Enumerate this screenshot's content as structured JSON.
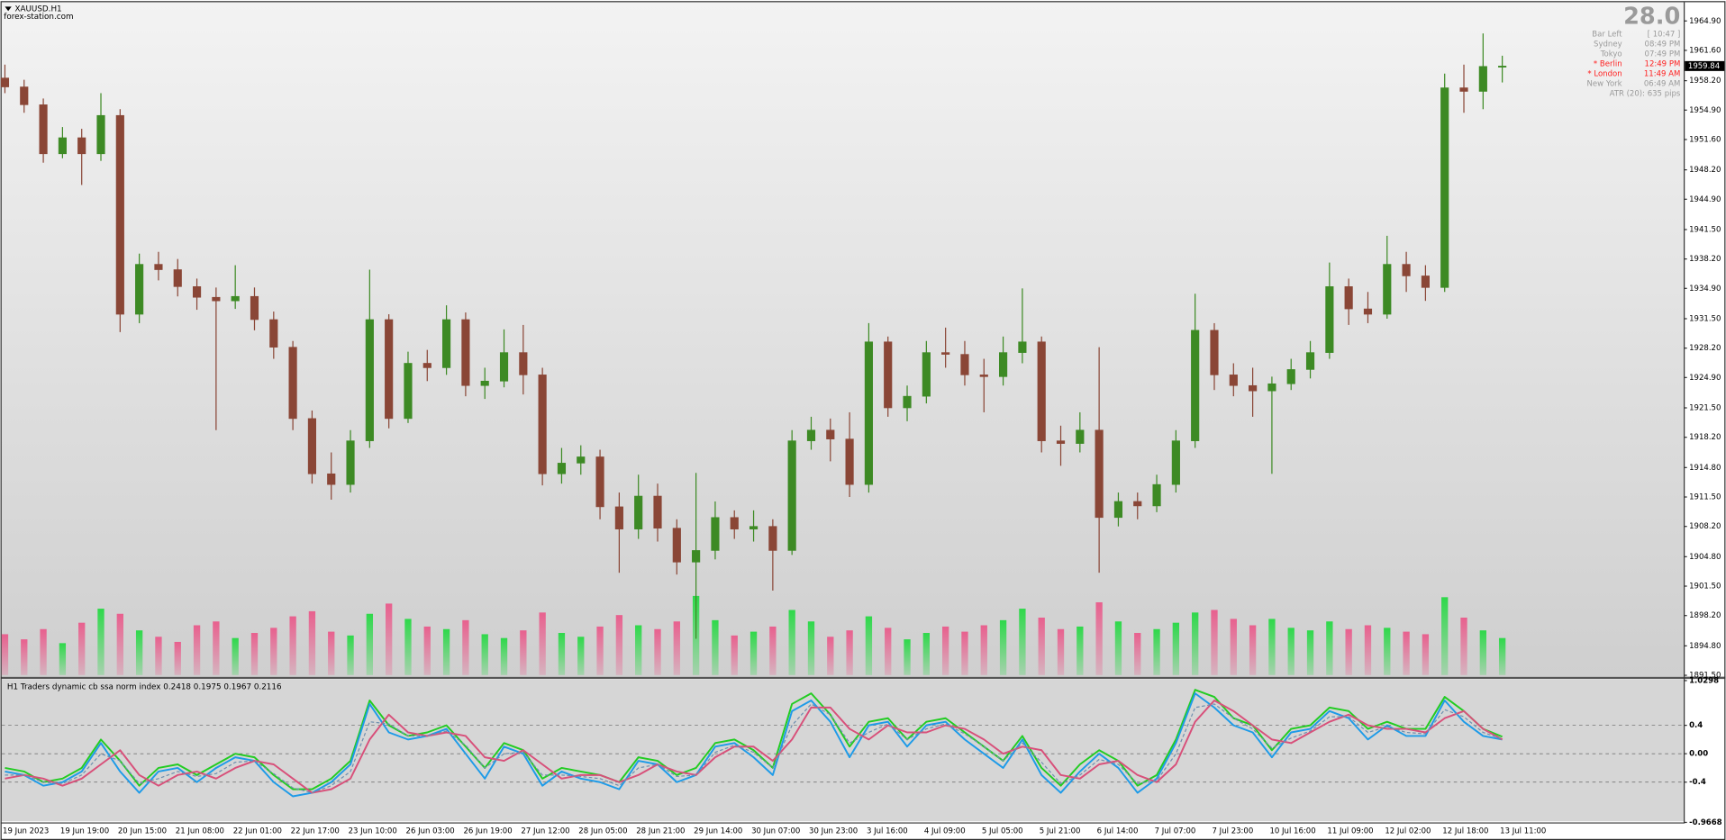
{
  "header": {
    "symbol": "XAUUSD.H1",
    "site": "forex-station.com"
  },
  "info_panel": {
    "big_value": "28.0",
    "rows": [
      {
        "label": "Bar Left",
        "value": "[ 10:47 ]",
        "color": "#9a9a9a"
      },
      {
        "label": "Sydney",
        "value": "08:49 PM",
        "color": "#9a9a9a"
      },
      {
        "label": "Tokyo",
        "value": "07:49 PM",
        "color": "#9a9a9a"
      },
      {
        "label": "* Berlin",
        "value": "12:49 PM",
        "color": "#ff2020"
      },
      {
        "label": "* London",
        "value": "11:49 AM",
        "color": "#ff2020"
      },
      {
        "label": "New York",
        "value": "06:49 AM",
        "color": "#9a9a9a"
      },
      {
        "label": "ATR (20): 635 pips",
        "value": null,
        "color": "#9a9a9a"
      }
    ]
  },
  "chart_data": [
    {
      "type": "candlestick",
      "categories": [
        "19 Jun 2023",
        null,
        null,
        "19 Jun 19:00",
        null,
        null,
        "20 Jun 15:00",
        null,
        null,
        "21 Jun 08:00",
        null,
        null,
        "22 Jun 01:00",
        null,
        null,
        "22 Jun 17:00",
        null,
        null,
        "23 Jun 10:00",
        null,
        null,
        "26 Jun 03:00",
        null,
        null,
        "26 Jun 19:00",
        null,
        null,
        "27 Jun 12:00",
        null,
        null,
        "28 Jun 05:00",
        null,
        null,
        "28 Jun 21:00",
        null,
        null,
        "29 Jun 14:00",
        null,
        null,
        "30 Jun 07:00",
        null,
        null,
        "30 Jun 23:00",
        null,
        null,
        "3 Jul 16:00",
        null,
        null,
        "4 Jul 09:00",
        null,
        null,
        "5 Jul 05:00",
        null,
        null,
        "5 Jul 21:00",
        null,
        null,
        "6 Jul 14:00",
        null,
        null,
        "7 Jul 07:00",
        null,
        null,
        "7 Jul 23:00",
        null,
        null,
        "10 Jul 16:00",
        null,
        null,
        "11 Jul 09:00",
        null,
        null,
        "12 Jul 02:00",
        null,
        null,
        "12 Jul 18:00",
        null,
        null,
        "13 Jul 11:00"
      ],
      "open": [
        1958.5,
        1957.5,
        1955.5,
        1950.0,
        1951.8,
        1950.0,
        1954.3,
        1932.0,
        1937.6,
        1937.0,
        1935.1,
        1933.9,
        1933.5,
        1934.0,
        1931.4,
        1928.3,
        1920.3,
        1914.1,
        1912.9,
        1917.8,
        1931.4,
        1920.3,
        1926.5,
        1926.0,
        1931.4,
        1924.0,
        1924.5,
        1927.7,
        1925.2,
        1914.1,
        1915.3,
        1916.0,
        1910.4,
        1907.9,
        1911.6,
        1908.0,
        1904.2,
        1905.5,
        1909.2,
        1907.9,
        1908.2,
        1905.5,
        1917.8,
        1919.0,
        1918.0,
        1912.9,
        1928.9,
        1921.5,
        1922.8,
        1927.7,
        1927.5,
        1925.2,
        1925.0,
        1927.7,
        1928.9,
        1917.8,
        1917.5,
        1919.0,
        1909.2,
        1911.0,
        1910.5,
        1912.9,
        1917.8,
        1930.2,
        1925.2,
        1924.0,
        1923.4,
        1924.2,
        1925.8,
        1927.7,
        1935.1,
        1932.6,
        1932.0,
        1937.6,
        1936.3,
        1935.0,
        1957.4,
        1957.0,
        1959.8
      ],
      "high": [
        1960.0,
        1958.3,
        1956.2,
        1953.0,
        1952.8,
        1956.8,
        1955.0,
        1938.8,
        1939.0,
        1938.2,
        1936.0,
        1935.0,
        1937.5,
        1935.0,
        1932.3,
        1929.0,
        1921.2,
        1916.5,
        1919.0,
        1937.0,
        1932.0,
        1927.8,
        1928.0,
        1933.0,
        1932.2,
        1926.0,
        1930.3,
        1930.8,
        1926.0,
        1917.0,
        1917.3,
        1916.8,
        1912.0,
        1914.0,
        1913.0,
        1909.0,
        1914.2,
        1911.0,
        1910.0,
        1910.0,
        1909.0,
        1919.0,
        1920.5,
        1920.3,
        1921.0,
        1931.0,
        1929.5,
        1924.0,
        1929.0,
        1930.5,
        1929.0,
        1927.0,
        1929.5,
        1934.9,
        1929.5,
        1919.5,
        1921.0,
        1928.3,
        1912.0,
        1912.0,
        1914.0,
        1919.0,
        1934.3,
        1931.0,
        1926.5,
        1926.0,
        1925.0,
        1927.0,
        1929.0,
        1937.8,
        1936.0,
        1934.5,
        1940.8,
        1939.0,
        1937.5,
        1959.0,
        1960.0,
        1963.5,
        1961.0
      ],
      "low": [
        1956.8,
        1954.6,
        1949.0,
        1949.5,
        1946.5,
        1949.2,
        1930.0,
        1931.0,
        1935.8,
        1934.0,
        1932.5,
        1919.0,
        1932.6,
        1930.2,
        1927.0,
        1919.0,
        1913.0,
        1911.2,
        1912.0,
        1917.0,
        1919.2,
        1919.8,
        1924.5,
        1925.2,
        1922.8,
        1922.5,
        1923.8,
        1923.0,
        1912.8,
        1913.0,
        1914.0,
        1909.0,
        1903.0,
        1906.8,
        1906.5,
        1902.8,
        1895.6,
        1904.5,
        1906.8,
        1906.5,
        1901.0,
        1905.0,
        1916.8,
        1915.5,
        1911.5,
        1912.0,
        1920.5,
        1920.0,
        1922.0,
        1926.0,
        1924.0,
        1921.0,
        1924.0,
        1926.5,
        1916.5,
        1915.0,
        1916.5,
        1903.0,
        1908.2,
        1909.0,
        1909.8,
        1912.0,
        1917.0,
        1923.5,
        1922.8,
        1920.5,
        1914.1,
        1923.5,
        1924.8,
        1927.0,
        1930.8,
        1931.0,
        1931.5,
        1934.5,
        1933.5,
        1934.5,
        1954.6,
        1955.0,
        1958.0
      ],
      "close": [
        1957.5,
        1955.5,
        1950.0,
        1951.8,
        1950.0,
        1954.3,
        1932.0,
        1937.6,
        1937.0,
        1935.1,
        1933.9,
        1933.5,
        1934.0,
        1931.4,
        1928.3,
        1920.3,
        1914.1,
        1912.9,
        1917.8,
        1931.4,
        1920.3,
        1926.5,
        1926.0,
        1931.4,
        1924.0,
        1924.5,
        1927.7,
        1925.2,
        1914.1,
        1915.3,
        1916.0,
        1910.4,
        1907.9,
        1911.6,
        1908.0,
        1904.2,
        1905.5,
        1909.2,
        1907.9,
        1908.2,
        1905.5,
        1917.8,
        1919.0,
        1918.0,
        1912.9,
        1928.9,
        1921.5,
        1922.8,
        1927.7,
        1927.5,
        1925.2,
        1925.0,
        1927.7,
        1928.9,
        1917.8,
        1917.5,
        1919.0,
        1909.2,
        1911.0,
        1910.5,
        1912.9,
        1917.8,
        1930.2,
        1925.2,
        1924.0,
        1923.4,
        1924.2,
        1925.8,
        1927.7,
        1935.1,
        1932.6,
        1932.0,
        1937.6,
        1936.3,
        1935.0,
        1957.4,
        1957.0,
        1959.8,
        1959.84
      ],
      "volume": [
        3200,
        2800,
        3600,
        2500,
        4100,
        5200,
        4800,
        3500,
        3000,
        2600,
        3900,
        4200,
        2900,
        3300,
        3700,
        4600,
        5000,
        3400,
        3100,
        4800,
        5600,
        4400,
        3800,
        3600,
        4300,
        3200,
        2900,
        3500,
        4900,
        3300,
        3000,
        3800,
        4700,
        3900,
        3600,
        4200,
        6200,
        4300,
        3100,
        3400,
        3800,
        5100,
        4200,
        3000,
        3500,
        4600,
        3700,
        2800,
        3300,
        3800,
        3400,
        3900,
        4300,
        5200,
        4500,
        3600,
        3800,
        5700,
        4200,
        3300,
        3600,
        4100,
        4900,
        5100,
        4400,
        3900,
        4400,
        3700,
        3500,
        4200,
        3600,
        3900,
        3700,
        3400,
        3200,
        6100,
        4500,
        3500,
        2900
      ],
      "up_color": "#3d8a24",
      "down_color": "#8a4636",
      "volume_up_color": "#2ed84a",
      "volume_down_color": "#e8608e",
      "ylim": [
        1891.4,
        1966.88
      ],
      "yticks": [
        {
          "value": 1964.9,
          "label": "1964.90"
        },
        {
          "value": 1961.6,
          "label": "1961.60"
        },
        {
          "value": 1958.2,
          "label": "1958.20"
        },
        {
          "value": 1954.9,
          "label": "1954.90"
        },
        {
          "value": 1951.6,
          "label": "1951.60"
        },
        {
          "value": 1948.2,
          "label": "1948.20"
        },
        {
          "value": 1944.9,
          "label": "1944.90"
        },
        {
          "value": 1941.5,
          "label": "1941.50"
        },
        {
          "value": 1938.2,
          "label": "1938.20"
        },
        {
          "value": 1934.9,
          "label": "1934.90"
        },
        {
          "value": 1931.5,
          "label": "1931.50"
        },
        {
          "value": 1928.2,
          "label": "1928.20"
        },
        {
          "value": 1924.9,
          "label": "1924.90"
        },
        {
          "value": 1921.5,
          "label": "1921.50"
        },
        {
          "value": 1918.2,
          "label": "1918.20"
        },
        {
          "value": 1914.8,
          "label": "1914.80"
        },
        {
          "value": 1911.5,
          "label": "1911.50"
        },
        {
          "value": 1908.2,
          "label": "1908.20"
        },
        {
          "value": 1904.8,
          "label": "1904.80"
        },
        {
          "value": 1901.5,
          "label": "1901.50"
        },
        {
          "value": 1898.2,
          "label": "1898.20"
        },
        {
          "value": 1894.8,
          "label": "1894.80"
        },
        {
          "value": 1891.5,
          "label": "1891.50"
        }
      ]
    },
    {
      "type": "line",
      "title": "H1  Traders dynamic cb ssa norm index 0.2418 0.1975 0.1967 0.2116",
      "series": [
        {
          "color": "#22cc22",
          "dashed": false,
          "values": [
            -0.2,
            -0.25,
            -0.4,
            -0.35,
            -0.2,
            0.2,
            -0.1,
            -0.45,
            -0.2,
            -0.15,
            -0.3,
            -0.15,
            0.0,
            -0.05,
            -0.3,
            -0.5,
            -0.5,
            -0.35,
            -0.1,
            0.75,
            0.4,
            0.25,
            0.3,
            0.4,
            0.1,
            -0.2,
            0.15,
            0.05,
            -0.35,
            -0.2,
            -0.25,
            -0.3,
            -0.4,
            -0.05,
            -0.1,
            -0.3,
            -0.2,
            0.15,
            0.2,
            0.05,
            -0.2,
            0.7,
            0.85,
            0.55,
            0.1,
            0.45,
            0.5,
            0.2,
            0.45,
            0.5,
            0.3,
            0.1,
            -0.1,
            0.25,
            -0.2,
            -0.45,
            -0.15,
            0.05,
            -0.1,
            -0.45,
            -0.3,
            0.2,
            0.9,
            0.8,
            0.5,
            0.4,
            0.05,
            0.35,
            0.4,
            0.65,
            0.6,
            0.35,
            0.45,
            0.35,
            0.35,
            0.8,
            0.6,
            0.35,
            0.24
          ]
        },
        {
          "color": "#1e9be8",
          "dashed": false,
          "values": [
            -0.25,
            -0.3,
            -0.45,
            -0.4,
            -0.25,
            0.15,
            -0.25,
            -0.55,
            -0.25,
            -0.2,
            -0.4,
            -0.2,
            -0.05,
            -0.1,
            -0.4,
            -0.6,
            -0.55,
            -0.4,
            -0.15,
            0.7,
            0.3,
            0.2,
            0.25,
            0.35,
            0.0,
            -0.35,
            0.1,
            0.0,
            -0.45,
            -0.25,
            -0.35,
            -0.4,
            -0.5,
            -0.1,
            -0.15,
            -0.4,
            -0.3,
            0.1,
            0.15,
            -0.05,
            -0.3,
            0.6,
            0.75,
            0.45,
            -0.05,
            0.4,
            0.45,
            0.1,
            0.4,
            0.45,
            0.2,
            0.0,
            -0.2,
            0.2,
            -0.3,
            -0.55,
            -0.25,
            0.0,
            -0.2,
            -0.55,
            -0.35,
            0.15,
            0.85,
            0.65,
            0.4,
            0.3,
            -0.05,
            0.3,
            0.35,
            0.6,
            0.5,
            0.2,
            0.4,
            0.25,
            0.25,
            0.75,
            0.45,
            0.25,
            0.2
          ]
        },
        {
          "color": "#d8507a",
          "dashed": false,
          "values": [
            -0.35,
            -0.3,
            -0.35,
            -0.45,
            -0.35,
            -0.15,
            0.05,
            -0.3,
            -0.45,
            -0.3,
            -0.25,
            -0.35,
            -0.2,
            -0.1,
            -0.15,
            -0.35,
            -0.55,
            -0.5,
            -0.35,
            0.2,
            0.55,
            0.3,
            0.25,
            0.3,
            0.25,
            -0.05,
            -0.1,
            0.05,
            -0.15,
            -0.35,
            -0.3,
            -0.3,
            -0.4,
            -0.3,
            -0.15,
            -0.25,
            -0.3,
            -0.05,
            0.1,
            0.1,
            -0.1,
            0.2,
            0.65,
            0.65,
            0.35,
            0.2,
            0.4,
            0.3,
            0.3,
            0.4,
            0.35,
            0.2,
            0.0,
            0.1,
            0.05,
            -0.3,
            -0.35,
            -0.15,
            -0.1,
            -0.3,
            -0.4,
            -0.15,
            0.45,
            0.75,
            0.6,
            0.4,
            0.2,
            0.15,
            0.3,
            0.45,
            0.55,
            0.4,
            0.35,
            0.35,
            0.3,
            0.5,
            0.6,
            0.35,
            0.2
          ]
        },
        {
          "color": "#6f8fae",
          "dashed": true,
          "values": [
            -0.3,
            -0.3,
            -0.4,
            -0.42,
            -0.3,
            0.0,
            -0.1,
            -0.42,
            -0.35,
            -0.25,
            -0.32,
            -0.28,
            -0.12,
            -0.1,
            -0.28,
            -0.48,
            -0.55,
            -0.45,
            -0.25,
            0.45,
            0.42,
            0.25,
            0.25,
            0.32,
            0.12,
            -0.2,
            0.0,
            0.02,
            -0.3,
            -0.3,
            -0.32,
            -0.35,
            -0.45,
            -0.2,
            -0.15,
            -0.32,
            -0.3,
            0.02,
            0.12,
            0.02,
            -0.2,
            0.4,
            0.7,
            0.55,
            0.15,
            0.3,
            0.42,
            0.2,
            0.35,
            0.42,
            0.28,
            0.1,
            -0.1,
            0.15,
            -0.12,
            -0.42,
            -0.3,
            -0.08,
            -0.15,
            -0.42,
            -0.38,
            0.0,
            0.65,
            0.7,
            0.5,
            0.35,
            0.08,
            0.22,
            0.32,
            0.52,
            0.52,
            0.3,
            0.38,
            0.3,
            0.28,
            0.62,
            0.52,
            0.3,
            0.21
          ]
        }
      ],
      "levels": [
        0.4,
        0.0,
        -0.4
      ],
      "ylim": [
        -0.9668,
        1.0298
      ],
      "yticks": [
        1.0298,
        0.4,
        {
          "value": 0,
          "label": "0.00"
        },
        -0.4,
        -0.9668
      ]
    }
  ]
}
